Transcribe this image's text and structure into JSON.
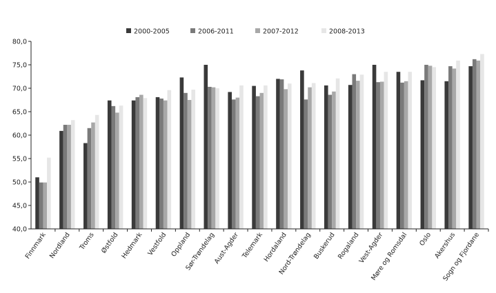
{
  "chart_data": {
    "type": "bar",
    "title": "",
    "xlabel": "",
    "ylabel": "",
    "ylim": [
      40,
      80
    ],
    "yticks": [
      "40,0",
      "45,0",
      "50,0",
      "55,0",
      "60,0",
      "65,0",
      "70,0",
      "75,0",
      "80,0"
    ],
    "grid": false,
    "legend_position": "top",
    "categories": [
      "Finnmark",
      "Nordland",
      "Troms",
      "Østfold",
      "Hedmark",
      "Vestfold",
      "Oppland",
      "Sør-Trøndelag",
      "Aust-Agder",
      "Telemark",
      "Hordaland",
      "Nord-Trøndelag",
      "Buskerud",
      "Rogaland",
      "Vest-Agder",
      "Møre og Romsdal",
      "Oslo",
      "Akershus",
      "Sogn og Fjordane"
    ],
    "series": [
      {
        "name": "2000-2005",
        "color": "#3a3a3a",
        "values": [
          51.0,
          60.9,
          58.3,
          67.4,
          67.4,
          68.1,
          72.3,
          75.0,
          69.2,
          70.5,
          72.0,
          73.8,
          70.6,
          70.7,
          75.0,
          73.5,
          71.7,
          71.5,
          74.7
        ]
      },
      {
        "name": "2006-2011",
        "color": "#7a7a7a",
        "values": [
          49.9,
          62.2,
          61.5,
          66.2,
          68.1,
          67.8,
          69.0,
          70.3,
          67.6,
          68.3,
          71.9,
          67.6,
          68.6,
          73.0,
          71.3,
          71.2,
          75.0,
          74.7,
          76.2
        ]
      },
      {
        "name": "2007-2012",
        "color": "#a8a8a8",
        "values": [
          49.9,
          62.2,
          62.7,
          64.8,
          68.6,
          67.4,
          67.5,
          70.2,
          68.0,
          69.0,
          69.8,
          70.2,
          69.3,
          71.6,
          71.4,
          71.5,
          74.8,
          74.2,
          75.9
        ]
      },
      {
        "name": "2008-2013",
        "color": "#e6e6e6",
        "values": [
          55.2,
          63.2,
          64.3,
          66.3,
          67.9,
          69.6,
          69.7,
          70.0,
          70.6,
          70.6,
          71.0,
          71.1,
          72.1,
          72.9,
          73.5,
          73.5,
          74.5,
          75.9,
          77.3
        ]
      }
    ]
  }
}
